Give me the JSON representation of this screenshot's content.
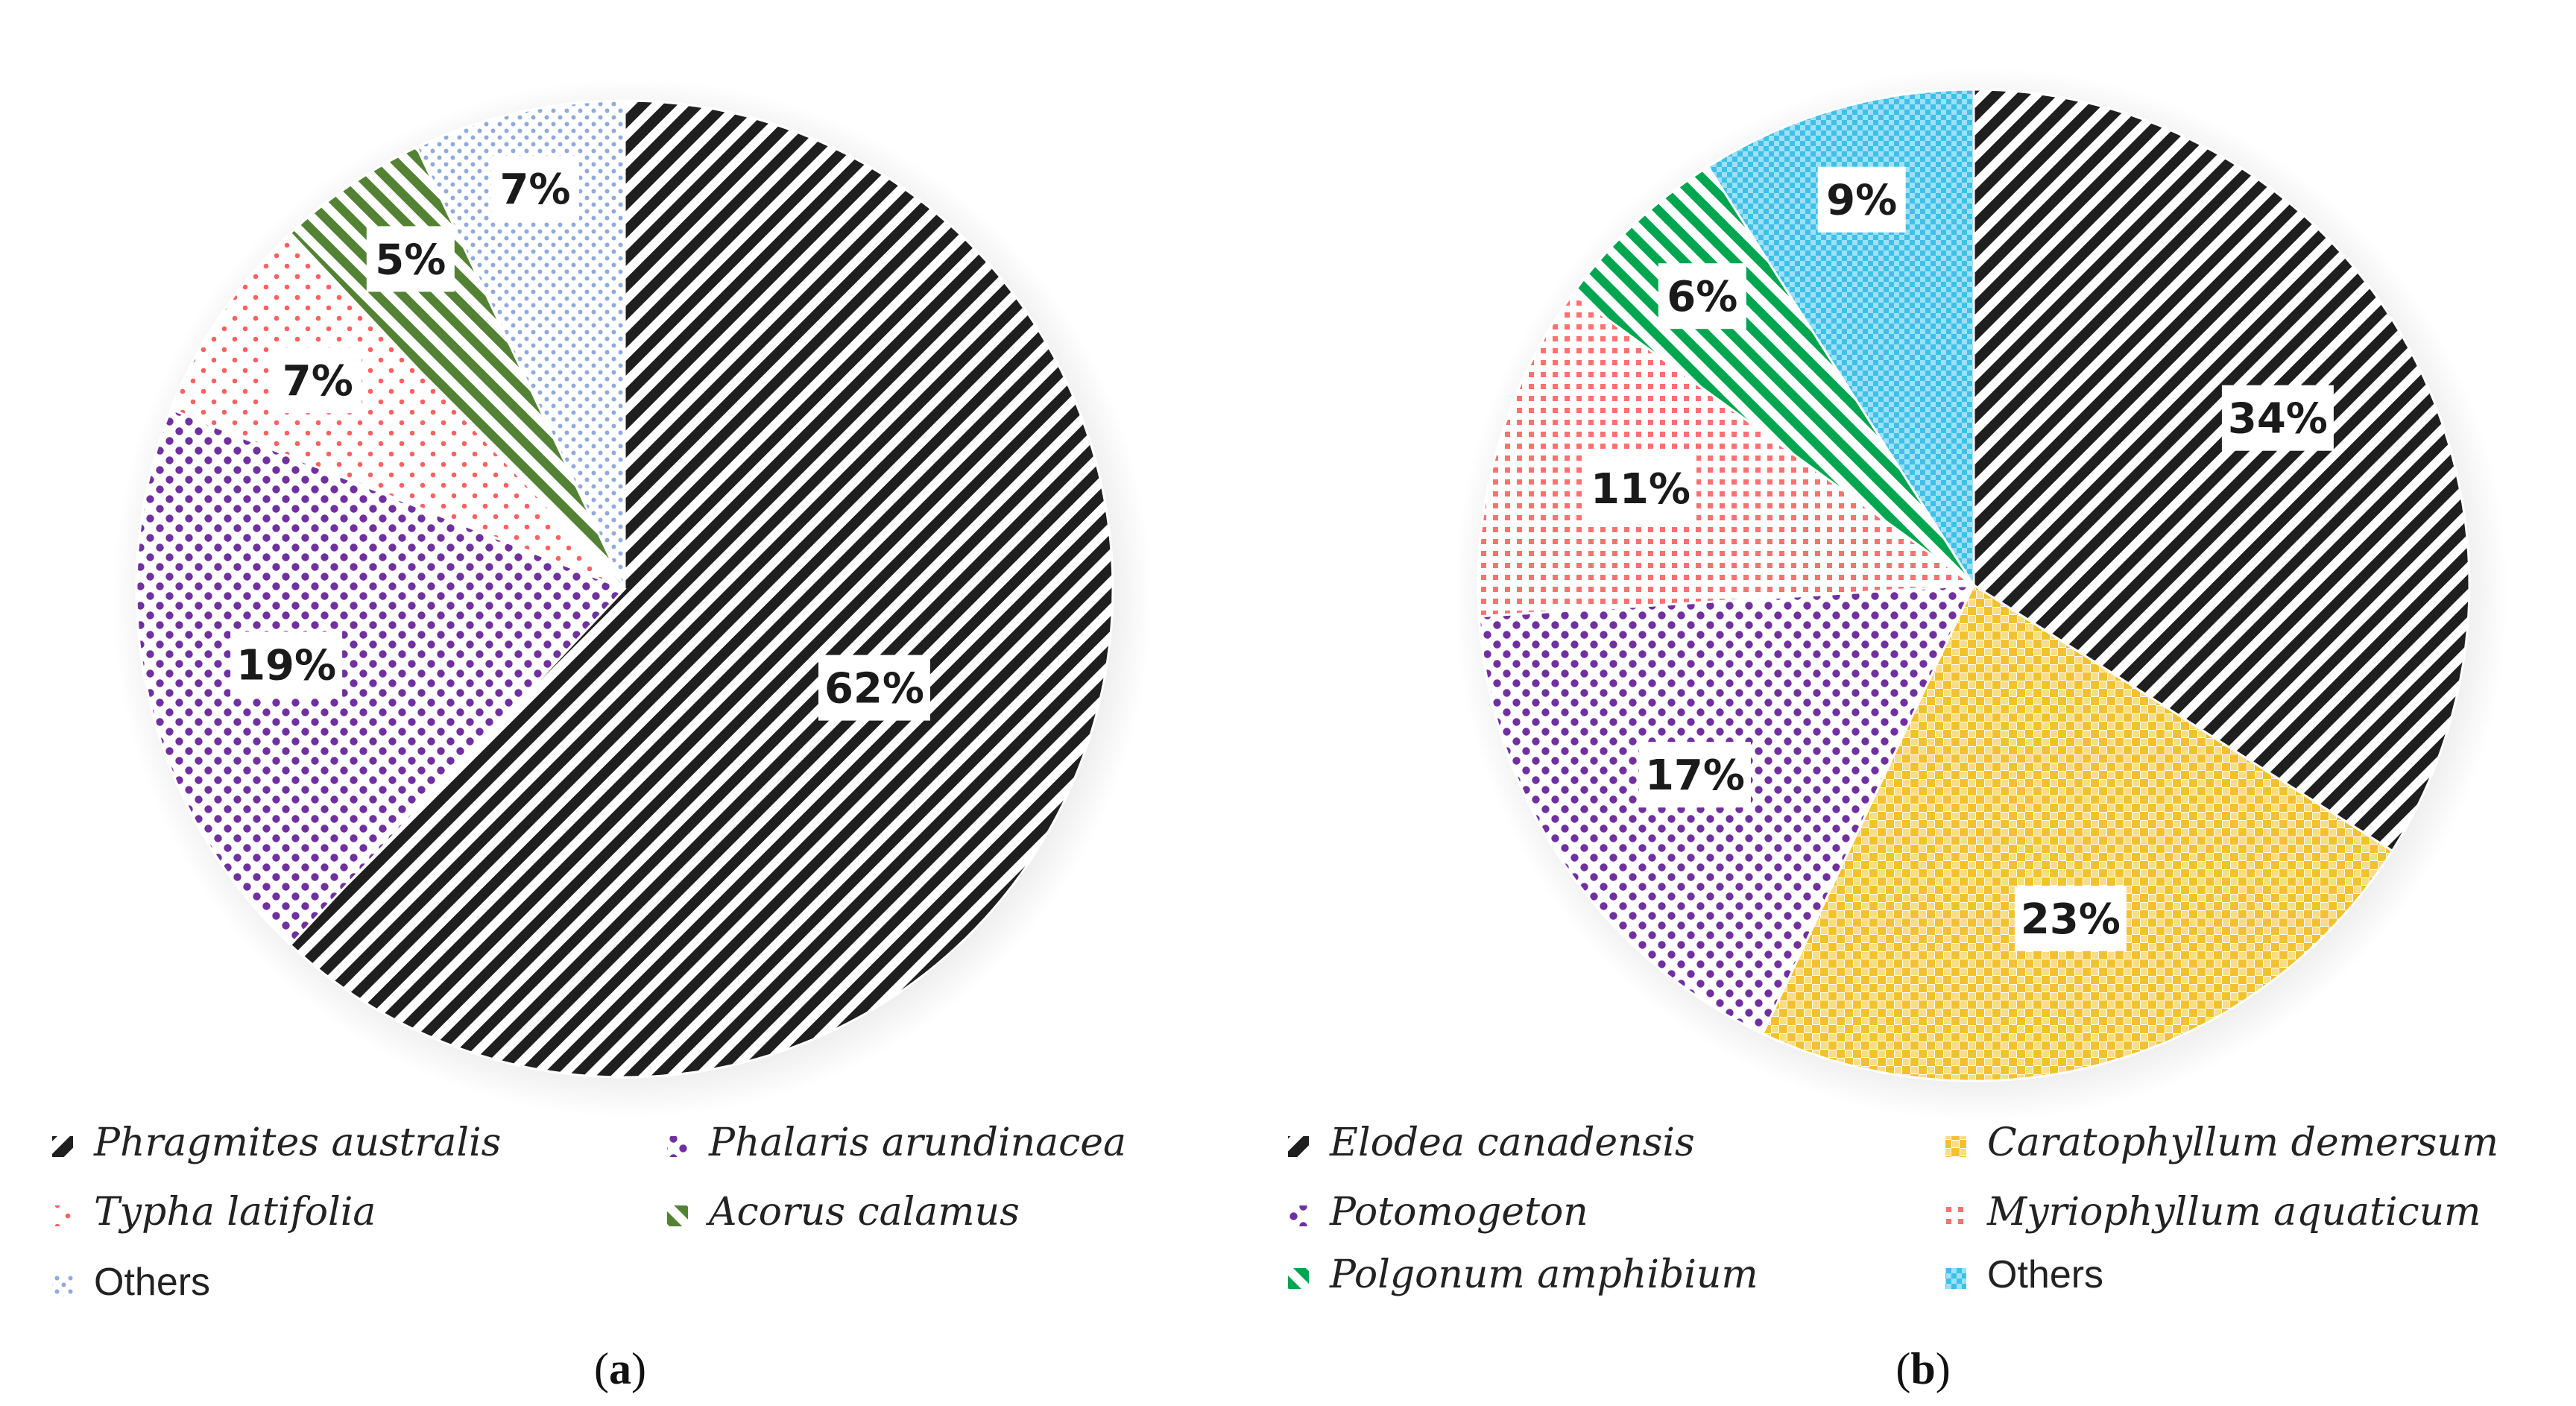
{
  "chart_data": [
    {
      "type": "pie",
      "panel_label": {
        "open": "(",
        "letter": "a",
        "close": ")"
      },
      "start": "12 o'clock, clockwise",
      "slices": [
        {
          "name": "Phragmites australis",
          "value": 62,
          "label": "62%",
          "italic": true,
          "color": "#1f1f1f",
          "pattern": "diagonal-hatch"
        },
        {
          "name": "Phalaris arundinacea",
          "value": 19,
          "label": "19%",
          "italic": true,
          "color": "#7030a0",
          "pattern": "dots"
        },
        {
          "name": "Typha latifolia",
          "value": 7,
          "label": "7%",
          "italic": true,
          "color": "#ff6060",
          "pattern": "sparse-dots"
        },
        {
          "name": "Acorus calamus",
          "value": 5,
          "label": "5%",
          "italic": true,
          "color": "#548235",
          "pattern": "reverse-diagonal"
        },
        {
          "name": "Others",
          "value": 7,
          "label": "7%",
          "italic": false,
          "color": "#8faadc",
          "pattern": "small-dots"
        }
      ],
      "legend_order": [
        "Phragmites australis",
        "Phalaris arundinacea",
        "Typha latifolia",
        "Acorus calamus",
        "Others"
      ]
    },
    {
      "type": "pie",
      "panel_label": {
        "open": "(",
        "letter": "b",
        "close": ")"
      },
      "start": "12 o'clock, clockwise",
      "slices": [
        {
          "name": "Elodea canadensis",
          "value": 34,
          "label": "34%",
          "italic": true,
          "color": "#1f1f1f",
          "pattern": "diagonal-hatch"
        },
        {
          "name": "Caratophyllum demersum",
          "value": 23,
          "label": "23%",
          "italic": true,
          "color": "#f2c12e",
          "pattern": "checker"
        },
        {
          "name": "Potomogeton",
          "value": 17,
          "label": "17%",
          "italic": true,
          "color": "#7030a0",
          "pattern": "dots"
        },
        {
          "name": "Myriophyllum aquaticum",
          "value": 11,
          "label": "11%",
          "italic": true,
          "color": "#ff6b6b",
          "pattern": "grid-dots"
        },
        {
          "name": "Polgonum amphibium",
          "value": 6,
          "label": "6%",
          "italic": true,
          "color": "#00a550",
          "pattern": "reverse-diagonal"
        },
        {
          "name": "Others",
          "value": 9,
          "label": "9%",
          "italic": false,
          "color": "#3ec0e8",
          "pattern": "fine-checker"
        }
      ],
      "legend_order": [
        "Elodea canadensis",
        "Caratophyllum demersum",
        "Potomogeton",
        "Myriophyllum aquaticum",
        "Polgonum amphibium",
        "Others"
      ]
    }
  ]
}
